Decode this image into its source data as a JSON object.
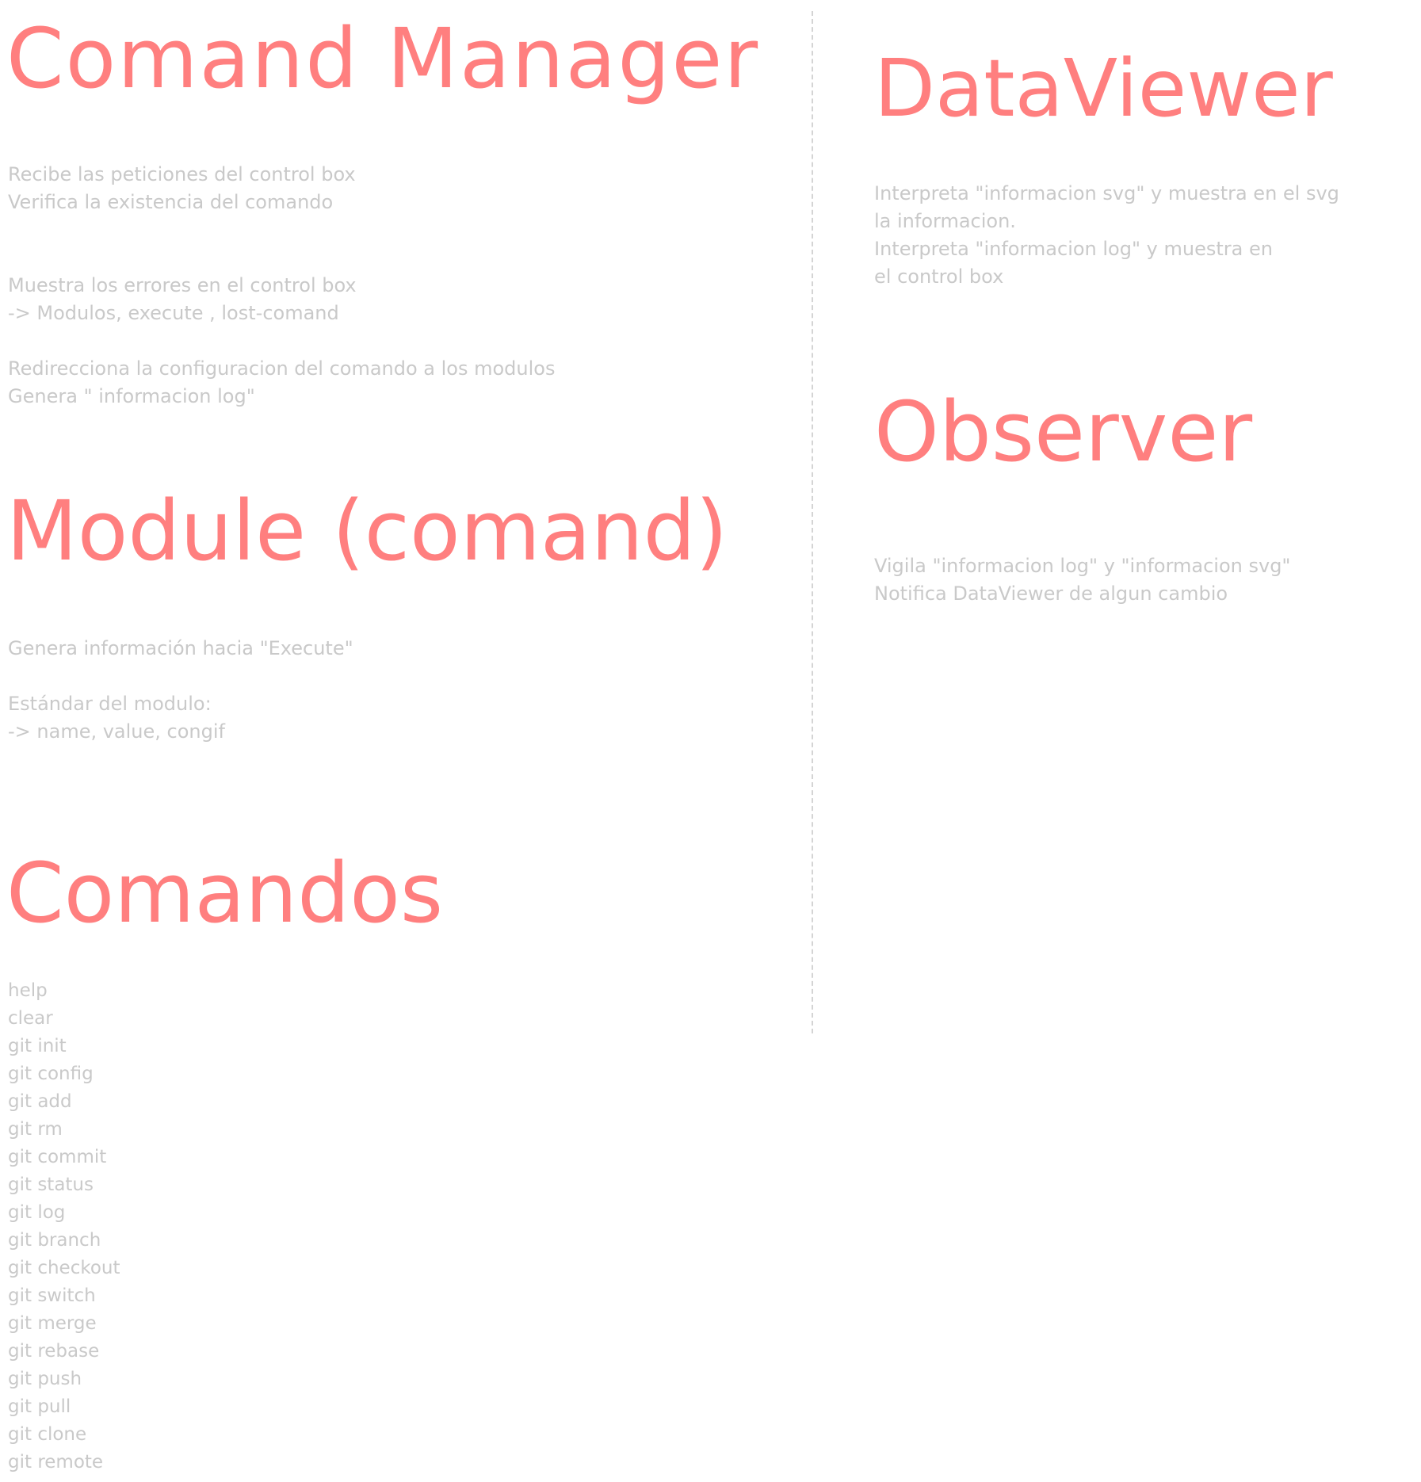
{
  "command_manager": {
    "title": "Comand Manager",
    "lines": [
      "Recibe las peticiones del control box",
      "Verifica la existencia del comando",
      "",
      "",
      "Muestra los errores en el control box",
      " -> Modulos, execute , lost-comand",
      "",
      "Redirecciona la configuracion del comando a los modulos",
      "Genera \" informacion log\""
    ]
  },
  "module": {
    "title": "Module (comand)",
    "lines": [
      "Genera información hacia \"Execute\"",
      "",
      "Estándar del modulo:",
      "  ->  name, value, congif"
    ]
  },
  "comandos": {
    "title": "Comandos",
    "items": [
      "help",
      "clear",
      "git init",
      "git config",
      "git add",
      "git rm",
      "git commit",
      "git status",
      "git log",
      "git branch",
      "git checkout",
      "git switch",
      "git merge",
      "git rebase",
      "git push",
      "git pull",
      "git clone",
      "git remote"
    ]
  },
  "dataviewer": {
    "title": "DataViewer",
    "lines": [
      "Interpreta \"informacion svg\" y muestra en el svg",
      "la informacion.",
      "Interpreta \"informacion log\" y muestra en",
      "el control box"
    ]
  },
  "observer": {
    "title": "Observer",
    "lines": [
      "Vigila \"informacion log\" y \"informacion svg\"",
      "Notifica DataViewer de algun cambio"
    ]
  },
  "colors": {
    "title": "#ff7f7f",
    "body_text": "#c9c9c9",
    "divider": "#d4d4d4"
  }
}
